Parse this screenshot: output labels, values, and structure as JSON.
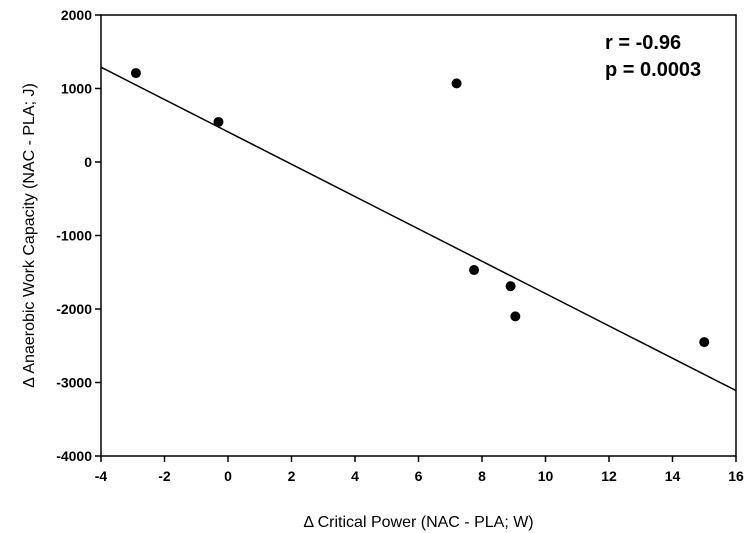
{
  "chart_data": {
    "type": "scatter",
    "title": "",
    "xlabel": "Δ Critical Power (NAC - PLA; W)",
    "ylabel": "Δ Anaerobic Work Capacity (NAC - PLA; J)",
    "xlim": [
      -4,
      16
    ],
    "ylim": [
      -4000,
      2000
    ],
    "x_ticks": [
      "-4",
      "-2",
      "0",
      "2",
      "4",
      "6",
      "8",
      "10",
      "12",
      "14",
      "16"
    ],
    "y_ticks": [
      "-4000",
      "-3000",
      "-2000",
      "-1000",
      "0",
      "1000",
      "2000"
    ],
    "grid": false,
    "points": [
      {
        "x": -2.9,
        "y": 1210
      },
      {
        "x": -0.3,
        "y": 545
      },
      {
        "x": 7.2,
        "y": 1070
      },
      {
        "x": 7.75,
        "y": -1470
      },
      {
        "x": 8.9,
        "y": -1690
      },
      {
        "x": 9.05,
        "y": -2100
      },
      {
        "x": 15.0,
        "y": -2450
      }
    ],
    "trendline": {
      "x": [
        -4,
        16
      ],
      "y": [
        1290,
        -3110
      ]
    },
    "annotations": {
      "r": "r = -0.96",
      "p": "p = 0.0003"
    }
  }
}
